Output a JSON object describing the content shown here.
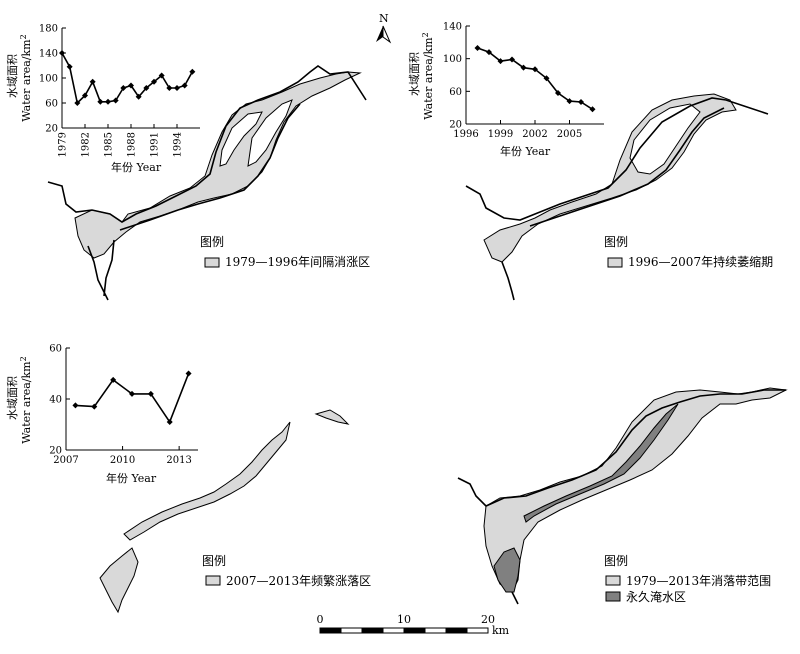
{
  "north_arrow": {
    "label": "N"
  },
  "panels": [
    {
      "id": "a",
      "legend_title": "图例",
      "legend_items": [
        {
          "label": "1979—1996年间隔消涨区",
          "color": "#d9d9d9"
        }
      ]
    },
    {
      "id": "b",
      "legend_title": "图例",
      "legend_items": [
        {
          "label": "1996—2007年持续萎缩期",
          "color": "#d9d9d9"
        }
      ]
    },
    {
      "id": "c",
      "legend_title": "图例",
      "legend_items": [
        {
          "label": "2007—2013年频繁涨落区",
          "color": "#d9d9d9"
        }
      ]
    },
    {
      "id": "d",
      "legend_title": "图例",
      "legend_items": [
        {
          "label": "1979—2013年消落带范围",
          "color": "#d9d9d9"
        },
        {
          "label": "永久淹水区",
          "color": "#808080"
        }
      ]
    }
  ],
  "scale_bar": {
    "ticks": [
      "0",
      "10",
      "20"
    ],
    "unit": "km"
  },
  "chart_data": [
    {
      "type": "line",
      "ylabel_cn": "水域面积",
      "ylabel_en": "Water area/km",
      "ylabel_sup": "2",
      "xlabel": "年份 Year",
      "xticks": [
        1979,
        1982,
        1985,
        1988,
        1991,
        1994
      ],
      "yticks": [
        20,
        60,
        100,
        140,
        180
      ],
      "xlim": [
        1979,
        1997
      ],
      "ylim": [
        20,
        180
      ],
      "series": [
        {
          "x": [
            1979,
            1980,
            1981,
            1982,
            1983,
            1984,
            1985,
            1986,
            1987,
            1988,
            1989,
            1990,
            1991,
            1992,
            1993,
            1994,
            1995,
            1996
          ],
          "y": [
            140,
            118,
            60,
            72,
            94,
            62,
            62,
            64,
            84,
            88,
            70,
            84,
            94,
            104,
            84,
            84,
            88,
            110
          ]
        }
      ]
    },
    {
      "type": "line",
      "ylabel_cn": "水域面积",
      "ylabel_en": "Water area/km",
      "ylabel_sup": "2",
      "xlabel": "年份 Year",
      "xticks": [
        1996,
        1999,
        2002,
        2005
      ],
      "yticks": [
        20,
        60,
        100,
        140
      ],
      "xlim": [
        1996,
        2008
      ],
      "ylim": [
        20,
        140
      ],
      "series": [
        {
          "x": [
            1997,
            1998,
            1999,
            2000,
            2001,
            2002,
            2003,
            2004,
            2005,
            2006,
            2007
          ],
          "y": [
            113,
            108,
            97,
            99,
            89,
            87,
            76,
            58,
            48,
            47,
            38
          ]
        }
      ]
    },
    {
      "type": "line",
      "ylabel_cn": "水域面积",
      "ylabel_en": "Water area/km",
      "ylabel_sup": "2",
      "xlabel": "年份 Year",
      "xticks": [
        2007,
        2010,
        2013
      ],
      "yticks": [
        20,
        40,
        60
      ],
      "xlim": [
        2007,
        2014
      ],
      "ylim": [
        20,
        60
      ],
      "series": [
        {
          "x": [
            2007.5,
            2008.5,
            2009.5,
            2010.5,
            2011.5,
            2012.5,
            2013.5
          ],
          "y": [
            37.5,
            37,
            47.5,
            42,
            42,
            31,
            50
          ]
        }
      ]
    }
  ]
}
